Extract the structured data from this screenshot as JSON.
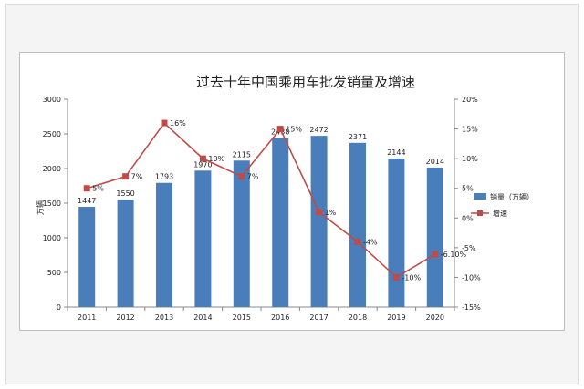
{
  "chart_data": {
    "type": "bar",
    "title": "过去十年中国乘用车批发销量及增速",
    "ylabel": "万辆",
    "categories": [
      "2011",
      "2012",
      "2013",
      "2014",
      "2015",
      "2016",
      "2017",
      "2018",
      "2019",
      "2020"
    ],
    "series": [
      {
        "name": "销量（万辆）",
        "kind": "bar",
        "axis": "left",
        "color": "#4a7ebb",
        "values": [
          1447,
          1550,
          1793,
          1970,
          2115,
          2438,
          2472,
          2371,
          2144,
          2014
        ],
        "labels": [
          "1447",
          "1550",
          "1793",
          "1970",
          "2115",
          "2438",
          "2472",
          "2371",
          "2144",
          "2014"
        ]
      },
      {
        "name": "增速",
        "kind": "line",
        "axis": "right",
        "color": "#be4b48",
        "values": [
          5,
          7,
          16,
          10,
          7,
          15,
          1,
          -4,
          -10,
          -6.1
        ],
        "labels": [
          "5%",
          "7%",
          "16%",
          "10%",
          "7%",
          "15%",
          "1%",
          "-4%",
          "-10%",
          "-6.10%"
        ]
      }
    ],
    "ylim_left": [
      0,
      3000
    ],
    "yticks_left": [
      "0",
      "500",
      "1000",
      "1500",
      "2000",
      "2500",
      "3000"
    ],
    "ylim_right": [
      -15,
      20
    ],
    "yticks_right": [
      "-15%",
      "-10%",
      "-5%",
      "0%",
      "5%",
      "10%",
      "15%",
      "20%"
    ],
    "grid": false,
    "legend_position": "right"
  }
}
